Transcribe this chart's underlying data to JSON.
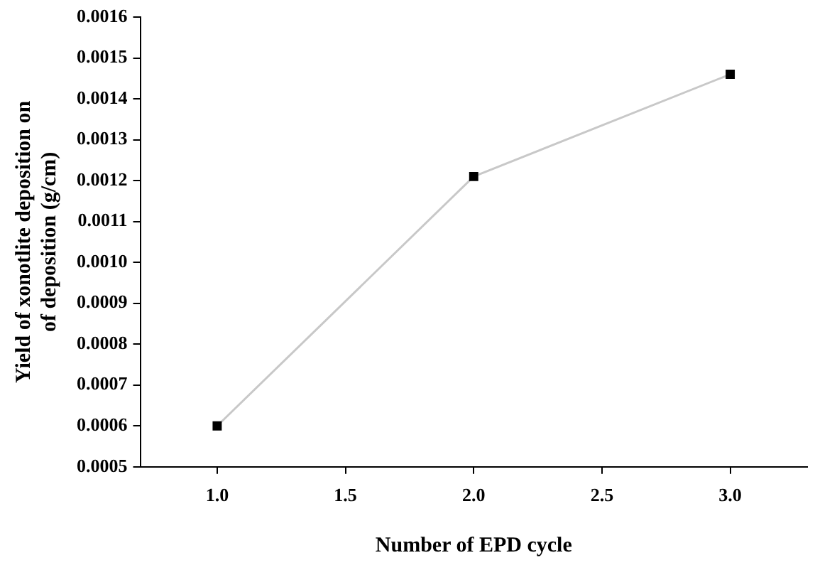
{
  "chart_data": {
    "type": "line",
    "xlabel": "Number of EPD cycle",
    "ylabel": "Yield of xonotlite deposition on\nof deposition (g/cm)",
    "x": [
      1.0,
      2.0,
      3.0
    ],
    "series": [
      {
        "color": "#c8c8c8",
        "values": [
          0.0006,
          0.00121,
          0.00146
        ]
      }
    ],
    "marker": "square",
    "line_style": "solid",
    "grid": false,
    "legend": false,
    "xlim": [
      0.7,
      3.3
    ],
    "xticks": [
      {
        "value": 1,
        "label": "1.0"
      },
      {
        "value": 1.5,
        "label": "1.5"
      },
      {
        "value": 2,
        "label": "2.0"
      },
      {
        "value": 2.5,
        "label": "2.5"
      },
      {
        "value": 3,
        "label": "3.0"
      }
    ],
    "ylim": [
      0.0005,
      0.0016
    ],
    "yticks": [
      0.0005,
      0.0006,
      0.0007,
      0.0008,
      0.0009,
      {
        "value": 0.001,
        "label": "0.0010"
      },
      0.0011,
      0.0012,
      0.0013,
      0.0014,
      0.0015,
      0.0016
    ]
  }
}
